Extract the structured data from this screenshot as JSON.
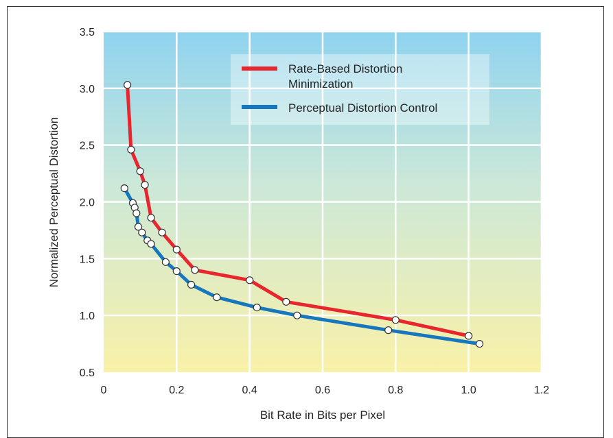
{
  "chart_data": {
    "type": "line",
    "title": "",
    "xlabel": "Bit Rate in Bits per Pixel",
    "ylabel": "Normalized Perceptual Distortion",
    "xlim": [
      0,
      1.2
    ],
    "ylim": [
      0.5,
      3.5
    ],
    "x_ticks": [
      "0",
      "0.2",
      "0.4",
      "0.6",
      "0.8",
      "1.0",
      "1.2"
    ],
    "y_ticks": [
      "0.5",
      "1.0",
      "1.5",
      "2.0",
      "2.5",
      "3.0",
      "3.5"
    ],
    "grid": true,
    "legend_position": "top-right",
    "background": "gradient blue-to-yellow",
    "series": [
      {
        "name": "Rate-Based Distortion Minimization",
        "legend_lines": [
          "Rate-Based Distortion",
          "Minimization"
        ],
        "color": "#e8262e",
        "x": [
          0.065,
          0.075,
          0.1,
          0.113,
          0.13,
          0.16,
          0.2,
          0.25,
          0.4,
          0.5,
          0.8,
          1.0
        ],
        "y": [
          3.03,
          2.46,
          2.27,
          2.15,
          1.86,
          1.73,
          1.58,
          1.4,
          1.31,
          1.12,
          0.96,
          0.82
        ]
      },
      {
        "name": "Perceptual Distortion Control",
        "legend_lines": [
          "Perceptual Distortion Control"
        ],
        "color": "#1677be",
        "x": [
          0.057,
          0.08,
          0.085,
          0.09,
          0.095,
          0.105,
          0.12,
          0.13,
          0.17,
          0.2,
          0.24,
          0.31,
          0.42,
          0.53,
          0.78,
          1.03
        ],
        "y": [
          2.12,
          1.99,
          1.95,
          1.9,
          1.78,
          1.73,
          1.66,
          1.63,
          1.47,
          1.39,
          1.27,
          1.16,
          1.07,
          1.0,
          0.87,
          0.75
        ]
      }
    ]
  }
}
